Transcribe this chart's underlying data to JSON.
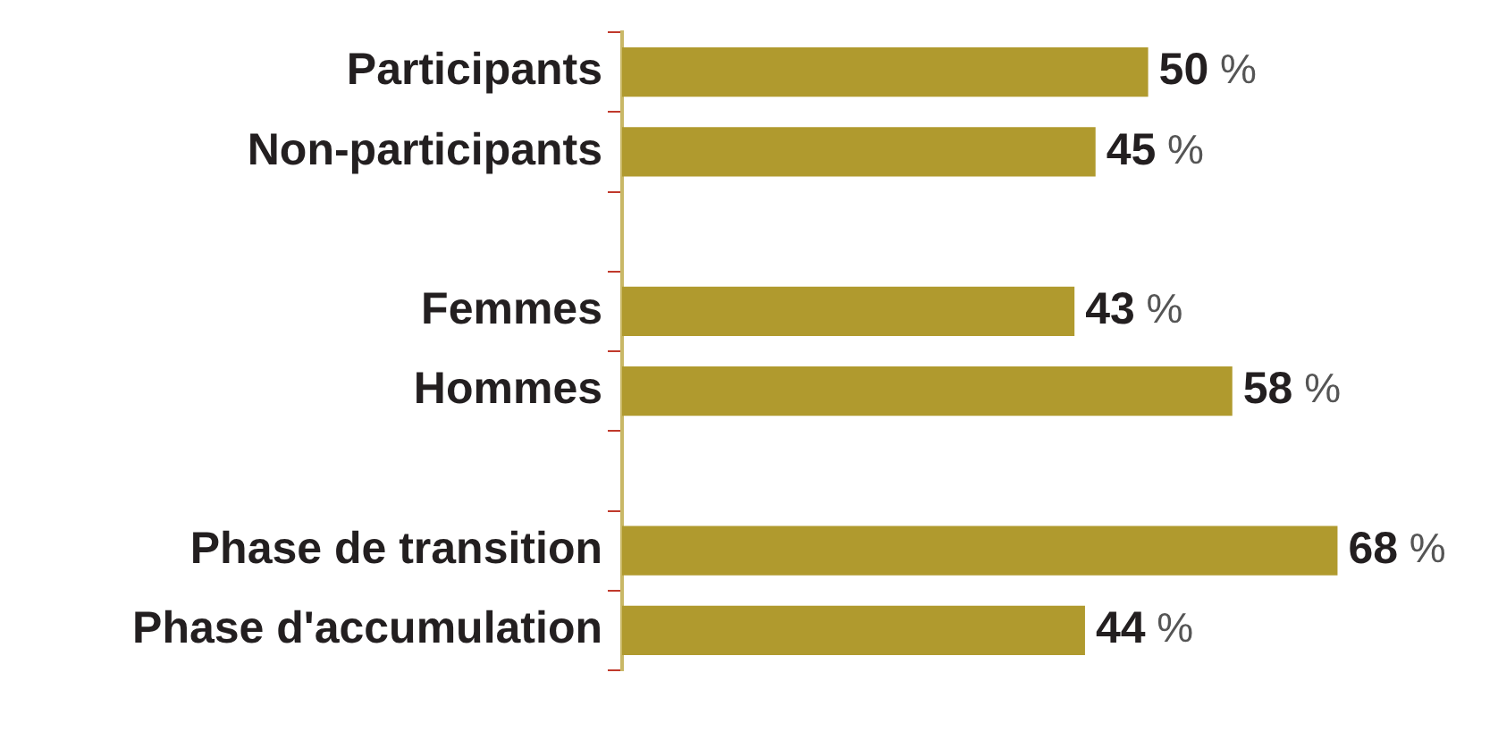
{
  "chart_data": {
    "type": "bar",
    "orientation": "horizontal",
    "categories": [
      "Participants",
      "Non-participants",
      null,
      "Femmes",
      "Hommes",
      null,
      "Phase de transition",
      "Phase d'accumulation"
    ],
    "values": [
      50,
      45,
      null,
      43,
      58,
      null,
      68,
      44
    ],
    "color": "#b09a2e",
    "value_labels": [
      "50 %",
      "45 %",
      null,
      "43 %",
      "58 %",
      null,
      "68 %",
      "44 %"
    ],
    "tick_labels": "y",
    "grid": false,
    "legend": false
  }
}
